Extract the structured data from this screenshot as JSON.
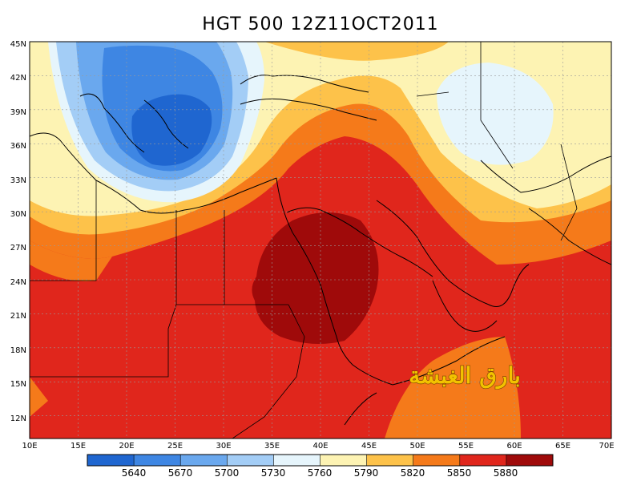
{
  "title": "HGT 500 12Z11OCT2011",
  "map": {
    "x_ticks": [
      "10E",
      "15E",
      "20E",
      "25E",
      "30E",
      "35E",
      "40E",
      "45E",
      "50E",
      "55E",
      "60E",
      "65E",
      "70E"
    ],
    "y_ticks": [
      "45N",
      "42N",
      "39N",
      "36N",
      "33N",
      "30N",
      "27N",
      "24N",
      "21N",
      "18N",
      "15N",
      "12N"
    ],
    "lon_range": [
      10,
      70
    ],
    "lat_range": [
      10,
      45
    ],
    "watermark": "بارق الغبشة"
  },
  "colorbar": {
    "labels": [
      "5640",
      "5670",
      "5700",
      "5730",
      "5760",
      "5790",
      "5820",
      "5850",
      "5880"
    ],
    "colors": [
      "#1f66d0",
      "#3e86e3",
      "#6aa8ee",
      "#a3cdf6",
      "#e6f5fc",
      "#fdf3b3",
      "#fdc24a",
      "#f57a1a",
      "#e0261c",
      "#9f0a0a"
    ]
  },
  "colors": {
    "z5640": "#1f66d0",
    "z5670": "#3e86e3",
    "z5700": "#6aa8ee",
    "z5730": "#a3cdf6",
    "z5760": "#e6f5fc",
    "z5790": "#fdf3b3",
    "z5820": "#fdc24a",
    "z5850": "#f57a1a",
    "z5880": "#e0261c",
    "z5910": "#9f0a0a"
  }
}
